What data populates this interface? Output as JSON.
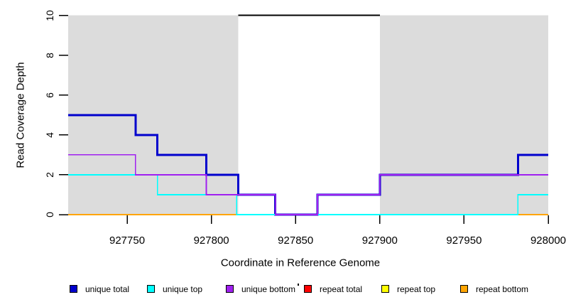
{
  "figure": {
    "type": "R-coverage-plot",
    "background": "#ffffff"
  },
  "chart_data": {
    "type": "line",
    "subtype": "step-coverage",
    "title": "",
    "xlabel": "Coordinate in Reference Genome",
    "ylabel": "Read Coverage Depth",
    "xlim": [
      927715,
      928000
    ],
    "ylim": [
      0,
      10
    ],
    "grid": false,
    "x_ticks": [
      927750,
      927800,
      927850,
      927900,
      927950,
      928000
    ],
    "x_tick_labels": [
      "927750",
      "927800",
      "927850",
      "927900",
      "927950",
      "928000"
    ],
    "y_ticks": [
      0,
      2,
      4,
      6,
      8,
      10
    ],
    "y_tick_labels": [
      "0",
      "2",
      "4",
      "6",
      "8",
      "10"
    ],
    "shaded_region_color": "#DCDCDC",
    "shaded_regions": [
      [
        927715,
        927816
      ],
      [
        927900,
        928000
      ]
    ],
    "cap_line": {
      "depth": 10,
      "x_start": 927816,
      "x_end": 927900,
      "color": "#000000"
    },
    "series": [
      {
        "name": "repeat bottom",
        "color": "#FFA500",
        "width": 1.8,
        "points": [
          [
            927715,
            0
          ],
          [
            928000,
            0
          ]
        ]
      },
      {
        "name": "unique total",
        "color": "#0000CD",
        "width": 3,
        "points": [
          [
            927715,
            5
          ],
          [
            927755,
            5
          ],
          [
            927755,
            4
          ],
          [
            927768,
            4
          ],
          [
            927768,
            3
          ],
          [
            927797,
            3
          ],
          [
            927797,
            2
          ],
          [
            927816,
            2
          ],
          [
            927816,
            1
          ],
          [
            927838,
            1
          ],
          [
            927838,
            0
          ],
          [
            927863,
            0
          ],
          [
            927863,
            1
          ],
          [
            927900,
            1
          ],
          [
            927900,
            2
          ],
          [
            927982,
            2
          ],
          [
            927982,
            3
          ],
          [
            928000,
            3
          ]
        ]
      },
      {
        "name": "unique top",
        "color": "#00FFFF",
        "width": 1.8,
        "points": [
          [
            927715,
            2
          ],
          [
            927768,
            2
          ],
          [
            927768,
            1
          ],
          [
            927815,
            1
          ],
          [
            927815,
            0
          ],
          [
            927982,
            0
          ],
          [
            927982,
            1
          ],
          [
            928000,
            1
          ]
        ]
      },
      {
        "name": "unique bottom",
        "color": "#A020F0",
        "width": 1.7,
        "points": [
          [
            927715,
            3
          ],
          [
            927755,
            3
          ],
          [
            927755,
            2
          ],
          [
            927797,
            2
          ],
          [
            927797,
            1
          ],
          [
            927838,
            1
          ],
          [
            927838,
            0
          ],
          [
            927863,
            0
          ],
          [
            927863,
            1
          ],
          [
            927900,
            1
          ],
          [
            927900,
            2
          ],
          [
            928000,
            2
          ]
        ]
      }
    ],
    "legend_position": "bottom",
    "legend": [
      {
        "label": "unique total",
        "color": "#0000CD"
      },
      {
        "label": "unique top",
        "color": "#00FFFF"
      },
      {
        "label": "unique bottom",
        "color": "#A020F0"
      },
      {
        "label": "repeat total",
        "color": "#FF0000"
      },
      {
        "label": "repeat top",
        "color": "#FFFF00"
      },
      {
        "label": "repeat bottom",
        "color": "#FFA500"
      }
    ]
  }
}
